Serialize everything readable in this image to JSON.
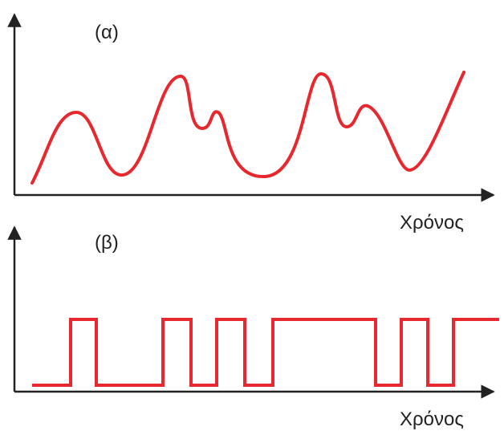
{
  "panels": [
    {
      "label": "(α)",
      "axis_label": "Χρόνος"
    },
    {
      "label": "(β)",
      "axis_label": "Χρόνος"
    }
  ]
}
